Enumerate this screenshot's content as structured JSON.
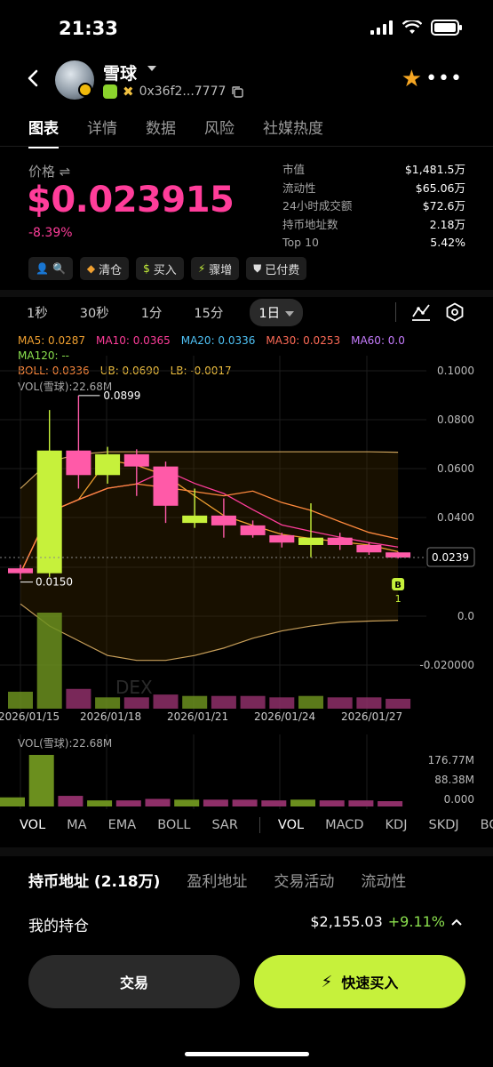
{
  "status": {
    "time": "21:33"
  },
  "header": {
    "token_name": "雪球",
    "address": "0x36f2...7777"
  },
  "tabs": [
    "图表",
    "详情",
    "数据",
    "风险",
    "社媒热度"
  ],
  "price": {
    "label": "价格 ⇌",
    "value": "$0.023915",
    "change": "-8.39%"
  },
  "stats": [
    {
      "label": "市值",
      "value": "$1,481.5万"
    },
    {
      "label": "流动性",
      "value": "$65.06万"
    },
    {
      "label": "24小时成交额",
      "value": "$72.6万"
    },
    {
      "label": "持币地址数",
      "value": "2.18万"
    },
    {
      "label": "Top 10",
      "value": "5.42%"
    }
  ],
  "tags": [
    {
      "icon": "person-search-icon",
      "label": ""
    },
    {
      "icon": "crown-icon",
      "label": "清仓"
    },
    {
      "icon": "money-bag-icon",
      "label": "买入"
    },
    {
      "icon": "bolt-icon",
      "label": "骤增"
    },
    {
      "icon": "shield-icon",
      "label": "已付费"
    }
  ],
  "intervals": [
    "1秒",
    "30秒",
    "1分",
    "15分",
    "1日"
  ],
  "legend": {
    "row1": [
      {
        "text": "MA5: 0.0287",
        "color": "#f0a030"
      },
      {
        "text": "MA10: 0.0365",
        "color": "#ff3d9a"
      },
      {
        "text": "MA20: 0.0336",
        "color": "#4fc3f7"
      },
      {
        "text": "MA30: 0.0253",
        "color": "#ff6b57"
      },
      {
        "text": "MA60: 0.0",
        "color": "#c77dff"
      }
    ],
    "row2": [
      {
        "text": "MA120: --",
        "color": "#8be04e"
      }
    ],
    "row3": [
      {
        "text": "BOLL: 0.0336",
        "color": "#ff8a3d"
      },
      {
        "text": "UB: 0.0690",
        "color": "#f0c040"
      },
      {
        "text": "LB: -0.0017",
        "color": "#f0c040"
      }
    ],
    "row4": [
      {
        "text": "VOL(雪球):22.68M",
        "color": "#aaaaaa"
      }
    ]
  },
  "chart_data": {
    "type": "candlestick",
    "y_ticks": [
      "0.1000",
      "0.0800",
      "0.0600",
      "0.0400",
      "0.0239",
      "0.0",
      "-0.020000"
    ],
    "x_ticks": [
      "2026/01/15",
      "2026/01/18",
      "2026/01/21",
      "2026/01/24",
      "2026/01/27"
    ],
    "current_price_label": "0.0239",
    "high_label": "0.0899",
    "low_label": "0.0150",
    "marker": {
      "badge": "B",
      "count": "1"
    },
    "watermark": "DEX",
    "candles": [
      {
        "open": 0.0195,
        "close": 0.0175,
        "high": 0.021,
        "low": 0.015,
        "up": false
      },
      {
        "open": 0.0175,
        "close": 0.0675,
        "high": 0.084,
        "low": 0.016,
        "up": true
      },
      {
        "open": 0.0675,
        "close": 0.0575,
        "high": 0.0899,
        "low": 0.052,
        "up": false
      },
      {
        "open": 0.0575,
        "close": 0.066,
        "high": 0.069,
        "low": 0.054,
        "up": true
      },
      {
        "open": 0.066,
        "close": 0.061,
        "high": 0.068,
        "low": 0.049,
        "up": false
      },
      {
        "open": 0.061,
        "close": 0.045,
        "high": 0.063,
        "low": 0.038,
        "up": false
      },
      {
        "open": 0.038,
        "close": 0.041,
        "high": 0.052,
        "low": 0.036,
        "up": true
      },
      {
        "open": 0.041,
        "close": 0.037,
        "high": 0.048,
        "low": 0.032,
        "up": false
      },
      {
        "open": 0.037,
        "close": 0.033,
        "high": 0.039,
        "low": 0.032,
        "up": false
      },
      {
        "open": 0.033,
        "close": 0.03,
        "high": 0.034,
        "low": 0.028,
        "up": false
      },
      {
        "open": 0.029,
        "close": 0.032,
        "high": 0.046,
        "low": 0.024,
        "up": true
      },
      {
        "open": 0.032,
        "close": 0.029,
        "high": 0.034,
        "low": 0.027,
        "up": false
      },
      {
        "open": 0.029,
        "close": 0.026,
        "high": 0.03,
        "low": 0.025,
        "up": false
      },
      {
        "open": 0.026,
        "close": 0.0239,
        "high": 0.0262,
        "low": 0.0235,
        "up": false
      }
    ],
    "volume": [
      12,
      68,
      14,
      8,
      8,
      10,
      9,
      9,
      9,
      8,
      9,
      8,
      8,
      7
    ],
    "volume_up": [
      true,
      true,
      false,
      true,
      false,
      false,
      true,
      false,
      false,
      false,
      true,
      false,
      false,
      false
    ]
  },
  "vol_panel": {
    "label": "VOL(雪球):22.68M",
    "ticks": [
      "176.77M",
      "88.38M",
      "0.000"
    ]
  },
  "indicator_tabs": [
    "VOL",
    "MA",
    "EMA",
    "BOLL",
    "SAR",
    "VOL",
    "MACD",
    "KDJ",
    "SKDJ",
    "BOLL"
  ],
  "holder_tabs": [
    "持币地址 (2.18万)",
    "盈利地址",
    "交易活动",
    "流动性"
  ],
  "position": {
    "label": "我的持仓",
    "value": "$2,155.03",
    "change": "+9.11%"
  },
  "actions": {
    "trade": "交易",
    "quick_buy": "快速买入"
  },
  "colors": {
    "up": "#c6f13b",
    "down": "#ff5aa8",
    "accent": "#ff3d9a"
  }
}
